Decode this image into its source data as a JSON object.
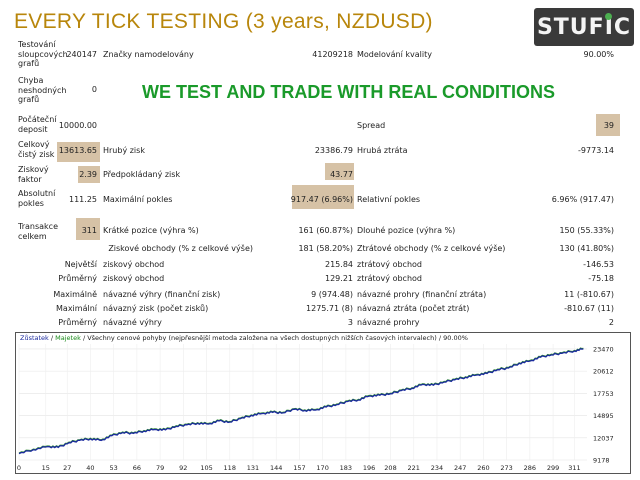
{
  "header": {
    "title": "EVERY TICK TESTING",
    "subtitle": "(3 years, NZDUSD)",
    "logo_text": "STUFIC"
  },
  "slogan": "WE TEST AND TRADE WITH REAL CONDITIONS",
  "report": {
    "bars_label": "Testování sloupcových grafů",
    "bars_value": "240147",
    "ticks_label": "Značky namodelovány",
    "ticks_value": "41209218",
    "quality_label": "Modelování kvality",
    "quality_value": "90.00%",
    "errors_label": "Chyba neshodných grafů",
    "errors_value": "0",
    "deposit_label": "Počáteční deposit",
    "deposit_value": "10000.00",
    "spread_label": "Spread",
    "spread_value": "39",
    "net_label": "Celkový čistý zisk",
    "net_value": "13613.65",
    "gross_profit_label": "Hrubý zisk",
    "gross_profit_value": "23386.79",
    "gross_loss_label": "Hrubá ztráta",
    "gross_loss_value": "-9773.14",
    "pf_label": "Ziskový faktor",
    "pf_value": "2.39",
    "expected_label": "Předpokládaný zisk",
    "expected_value": "43.77",
    "abs_dd_label": "Absolutní pokles",
    "abs_dd_value": "111.25",
    "max_dd_label": "Maximální pokles",
    "max_dd_value": "917.47 (6.96%)",
    "rel_dd_label": "Relativní pokles",
    "rel_dd_value": "6.96% (917.47)",
    "trades_label": "Transakce celkem",
    "trades_value": "311",
    "short_label": "Krátké pozice (výhra %)",
    "short_value": "161 (60.87%)",
    "long_label": "Dlouhé pozice (výhra %)",
    "long_value": "150 (55.33%)",
    "profit_trades_label": "Ziskové obchody (% z celkové výše)",
    "profit_trades_value": "181 (58.20%)",
    "loss_trades_label": "Ztrátové obchody (% z celkové výše)",
    "loss_trades_value": "130 (41.80%)",
    "largest_row": "Největší",
    "largest_profit_label": "ziskový obchod",
    "largest_profit_value": "215.84",
    "largest_loss_label": "ztrátový obchod",
    "largest_loss_value": "-146.53",
    "average_row": "Průměrný",
    "avg_profit_label": "ziskový obchod",
    "avg_profit_value": "129.21",
    "avg_loss_label": "ztrátový obchod",
    "avg_loss_value": "-75.18",
    "max_row": "Maximálně",
    "max_consec_wins_label": "návazné výhry (finanční zisk)",
    "max_consec_wins_value": "9 (974.48)",
    "max_consec_losses_label": "návazné prohry (finanční ztráta)",
    "max_consec_losses_value": "11 (-810.67)",
    "maximal_row": "Maximální",
    "maximal_profit_label": "návazný zisk (počet zisků)",
    "maximal_profit_value": "1275.71 (8)",
    "maximal_loss_label": "návazná ztráta (počet ztrát)",
    "maximal_loss_value": "-810.67 (11)",
    "avg_consec_row": "Průměrný",
    "avg_consec_wins_label": "návazné výhry",
    "avg_consec_wins_value": "3",
    "avg_consec_losses_label": "návazné prohry",
    "avg_consec_losses_value": "2"
  },
  "colors": {
    "title": "#b8860b",
    "slogan": "#1a9a2a",
    "highlight": "#d6c2a6",
    "balance_line": "#1b2a9e",
    "equity_line": "#2e8b2e"
  },
  "chart_data": {
    "type": "line",
    "legend_balance": "Zůstatek",
    "legend_equity": "Majetek",
    "legend_rest": "Všechny cenové pohyby (nejpřesnější metoda založena na všech dostupných nižších časových intervalech) / 90.00%",
    "x_ticks": [
      "0",
      "15",
      "27",
      "40",
      "53",
      "66",
      "79",
      "92",
      "105",
      "118",
      "131",
      "144",
      "157",
      "170",
      "183",
      "196",
      "209",
      "222",
      "235",
      "248",
      "261",
      "274",
      "287",
      "300",
      "313",
      "326",
      "339",
      "352",
      "365",
      "378",
      "391"
    ],
    "x_ticks_shown": [
      "0",
      "15",
      "27",
      "40",
      "53",
      "66",
      "79",
      "92",
      "105",
      "118",
      "131",
      "144",
      "157",
      "170",
      "183",
      "196",
      "208",
      "221",
      "234",
      "247",
      "260",
      "273",
      "286",
      "299",
      "311"
    ],
    "y_ticks": [
      "23470",
      "20612",
      "17753",
      "14895",
      "12037",
      "9178"
    ],
    "xlim": [
      0,
      318
    ],
    "ylim": [
      9178,
      24100
    ],
    "series": [
      {
        "name": "Zůstatek",
        "x": [
          0,
          8,
          16,
          22,
          28,
          34,
          40,
          46,
          52,
          58,
          64,
          70,
          76,
          82,
          88,
          94,
          100,
          106,
          112,
          118,
          124,
          130,
          136,
          142,
          148,
          154,
          160,
          166,
          172,
          178,
          184,
          190,
          196,
          202,
          208,
          214,
          220,
          226,
          232,
          238,
          244,
          250,
          256,
          262,
          268,
          274,
          280,
          286,
          292,
          298,
          304,
          311,
          316
        ],
        "y": [
          10000,
          10500,
          10900,
          10800,
          11400,
          11700,
          11900,
          11700,
          12300,
          12700,
          12600,
          12900,
          13100,
          13050,
          13500,
          13700,
          13900,
          13800,
          14200,
          14050,
          14500,
          14900,
          15150,
          15300,
          15250,
          15700,
          15550,
          15600,
          16000,
          16300,
          16700,
          16900,
          17400,
          17500,
          17700,
          18100,
          18400,
          18900,
          18800,
          19200,
          19500,
          19800,
          20100,
          20300,
          20800,
          21000,
          21600,
          21900,
          22400,
          22700,
          22900,
          23200,
          23470
        ]
      }
    ]
  }
}
